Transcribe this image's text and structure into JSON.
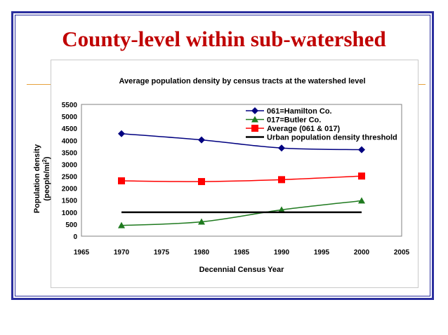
{
  "slide": {
    "title": "County-level within sub-watershed"
  },
  "colors": {
    "frame": "#2b2f9e",
    "title": "#c00000",
    "accent_rule": "#e6a23c"
  },
  "chart_data": {
    "type": "line",
    "title": "Average population density by census tracts at the watershed level",
    "xlabel": "Decennial Census Year",
    "ylabel_line1": "Population density",
    "ylabel_line2": "(people/mi",
    "ylabel_sup": "2",
    "ylabel_close": ")",
    "xlim": [
      1965,
      2005
    ],
    "ylim": [
      0,
      5500
    ],
    "xticks": [
      "1965",
      "1970",
      "1975",
      "1980",
      "1985",
      "1990",
      "1995",
      "2000",
      "2005"
    ],
    "yticks": [
      "0",
      "500",
      "1000",
      "1500",
      "2000",
      "2500",
      "3000",
      "3500",
      "4000",
      "4500",
      "5000",
      "5500"
    ],
    "legend_position": "top-right",
    "series": [
      {
        "name": "061=Hamilton Co.",
        "color": "#000080",
        "marker": "diamond",
        "x": [
          1970,
          1980,
          1990,
          2000
        ],
        "values": [
          4280,
          4020,
          3680,
          3610
        ]
      },
      {
        "name": "017=Butler Co.",
        "color": "#1f7a1f",
        "marker": "triangle",
        "x": [
          1970,
          1980,
          1990,
          2000
        ],
        "values": [
          450,
          600,
          1100,
          1480
        ]
      },
      {
        "name": "Average (061 & 017)",
        "color": "#ff0000",
        "marker": "square",
        "x": [
          1970,
          1980,
          1990,
          2000
        ],
        "values": [
          2310,
          2280,
          2360,
          2510
        ]
      },
      {
        "name": "Urban population density threshold",
        "color": "#000000",
        "marker": "none",
        "x": [
          1970,
          2000
        ],
        "values": [
          1000,
          1000
        ]
      }
    ]
  }
}
